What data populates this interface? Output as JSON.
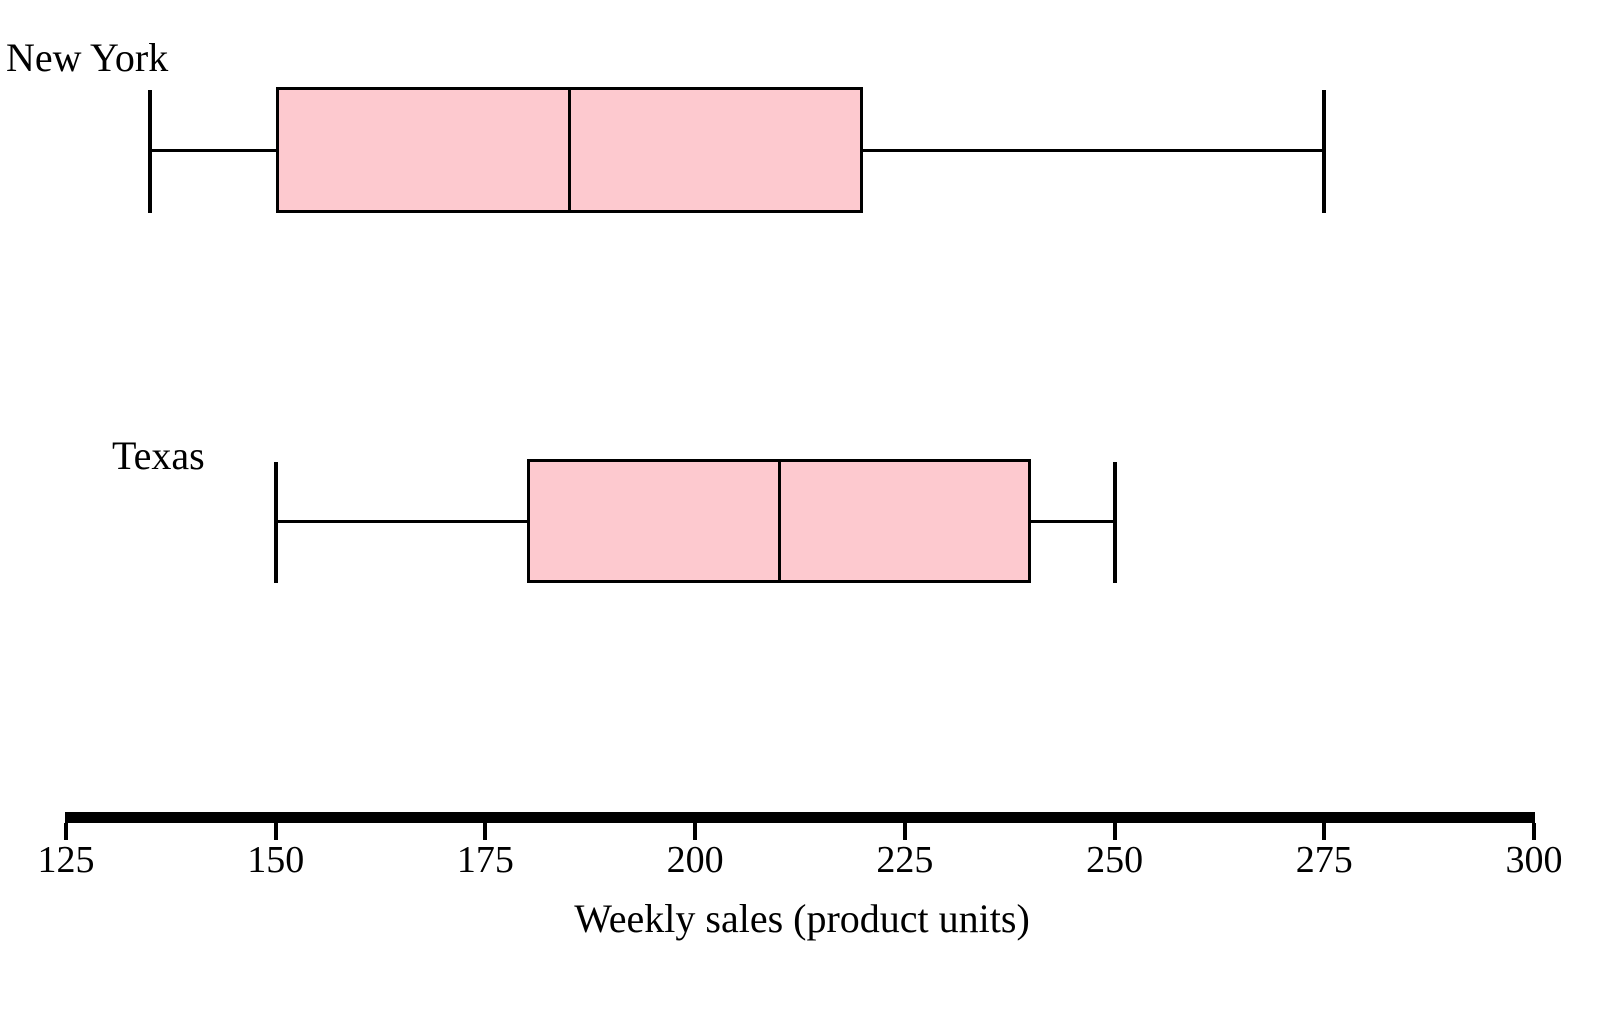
{
  "chart_data": {
    "type": "boxplot",
    "orientation": "horizontal",
    "title": "",
    "xlabel": "Weekly sales (product units)",
    "ylabel": "",
    "xlim": [
      125,
      300
    ],
    "xticks": [
      125,
      150,
      175,
      200,
      225,
      250,
      275,
      300
    ],
    "grid": false,
    "legend": "none",
    "box_fill_color": "#fdc9cf",
    "line_color": "#000000",
    "groups": [
      {
        "label": "New York",
        "min": 135,
        "q1": 150,
        "median": 185,
        "q3": 220,
        "max": 275
      },
      {
        "label": "Texas",
        "min": 150,
        "q1": 180,
        "median": 210,
        "q3": 240,
        "max": 250
      }
    ]
  }
}
